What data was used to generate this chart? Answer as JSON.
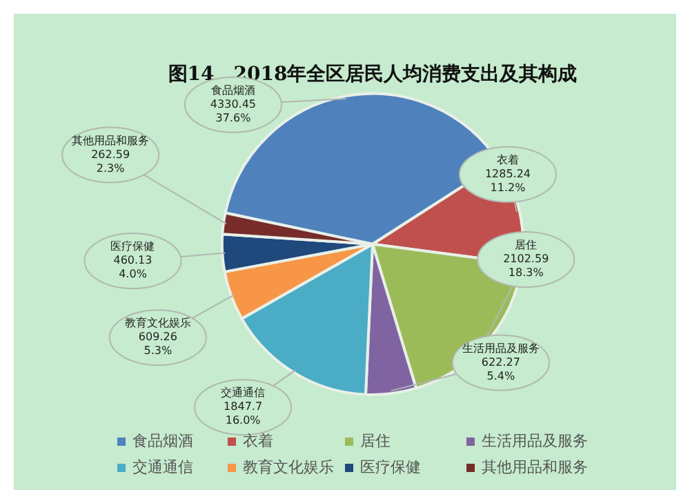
{
  "chart_data": {
    "type": "pie",
    "title": "图14　2018年全区居民人均消费支出及其构成",
    "categories": [
      "食品烟酒",
      "衣着",
      "居住",
      "生活用品及服务",
      "交通通信",
      "教育文化娱乐",
      "医疗保健",
      "其他用品和服务"
    ],
    "values": [
      4330.45,
      1285.24,
      2102.59,
      622.27,
      1847.7,
      609.26,
      460.13,
      262.59
    ],
    "value_labels": [
      "4330.45\n37.6%",
      "1285.24\n11.2%",
      "2102.59\n18.3%",
      "622.27\n5.4%",
      "1847.7\n16.0%",
      "609.26\n5.3%",
      "460.13\n4.0%",
      "262.59\n2.3%"
    ],
    "colors": [
      "#4f81bd",
      "#c0504d",
      "#9bbb59",
      "#8064a2",
      "#4bacc6",
      "#f79646",
      "#1f497d",
      "#772c2a"
    ],
    "legend": "bottom"
  }
}
